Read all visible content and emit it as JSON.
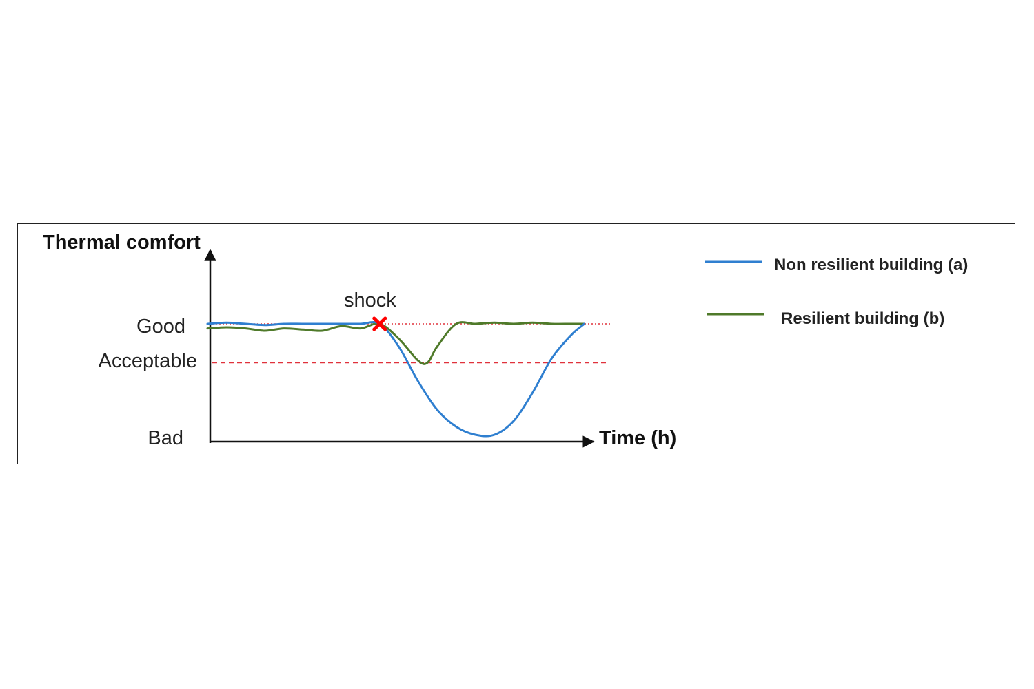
{
  "chart_data": {
    "type": "line",
    "ylabel": "Thermal comfort",
    "xlabel": "Time (h)",
    "y_levels": [
      {
        "label": "Good",
        "value": 1.0
      },
      {
        "label": "Acceptable",
        "value": 0.66
      },
      {
        "label": "Bad",
        "value": 0.0
      }
    ],
    "thresholds": [
      {
        "level": "Good",
        "value": 1.0,
        "color": "#e0323c",
        "style": "dotted"
      },
      {
        "level": "Acceptable",
        "value": 0.66,
        "color": "#e0323c",
        "style": "dashed"
      }
    ],
    "event": {
      "label": "shock",
      "x": 9.0,
      "y": 1.0,
      "color": "#ff0000",
      "marker": "x-mark"
    },
    "ylim": [
      0,
      1.25
    ],
    "xlim": [
      0,
      20
    ],
    "series": [
      {
        "name": "Non resilient building (a)",
        "color": "#2f7fd0",
        "x": [
          0,
          1,
          2,
          3,
          4,
          5,
          6,
          7,
          8,
          9,
          10,
          11,
          12,
          13,
          14,
          15,
          16,
          17,
          18,
          19,
          19.7
        ],
        "y": [
          1.0,
          1.01,
          1.0,
          0.99,
          1.0,
          1.0,
          1.0,
          1.0,
          1.0,
          1.0,
          0.8,
          0.5,
          0.25,
          0.1,
          0.03,
          0.03,
          0.15,
          0.4,
          0.7,
          0.9,
          1.0
        ]
      },
      {
        "name": "Resilient building (b)",
        "color": "#4f7a2a",
        "x": [
          0,
          1,
          2,
          3,
          4,
          5,
          6,
          7,
          8,
          9,
          10,
          11,
          11.5,
          12,
          13,
          14,
          15,
          16,
          17,
          18,
          19,
          19.7
        ],
        "y": [
          0.96,
          0.97,
          0.96,
          0.94,
          0.96,
          0.95,
          0.94,
          0.98,
          0.96,
          1.0,
          0.87,
          0.68,
          0.66,
          0.8,
          1.0,
          1.0,
          1.01,
          1.0,
          1.01,
          1.0,
          1.0,
          1.0
        ]
      }
    ],
    "legend": "right"
  }
}
